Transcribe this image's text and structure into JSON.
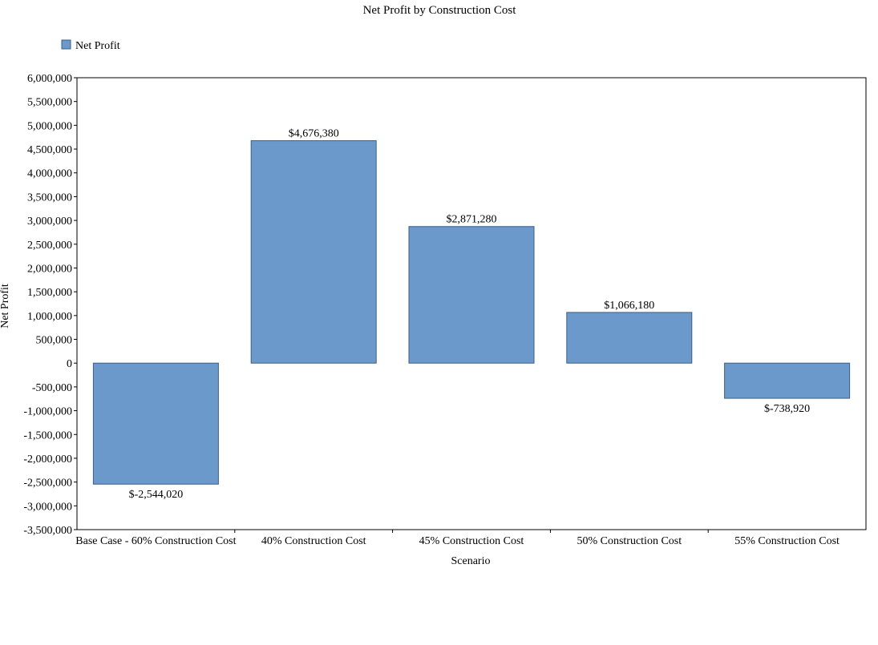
{
  "chart_data": {
    "type": "bar",
    "title": "Net Profit by Construction Cost",
    "xlabel": "Scenario",
    "ylabel": "Net Profit",
    "legend_position": "top-left",
    "grid": false,
    "ylim": [
      -3500000,
      6000000
    ],
    "ytick_step": 500000,
    "yticks": [
      "6,000,000",
      "5,500,000",
      "5,000,000",
      "4,500,000",
      "4,000,000",
      "3,500,000",
      "3,000,000",
      "2,500,000",
      "2,000,000",
      "1,500,000",
      "1,000,000",
      "500,000",
      "0",
      "-500,000",
      "-1,000,000",
      "-1,500,000",
      "-2,000,000",
      "-2,500,000",
      "-3,000,000",
      "-3,500,000"
    ],
    "categories": [
      "Base Case - 60% Construction Cost",
      "40% Construction Cost",
      "45% Construction Cost",
      "50% Construction Cost",
      "55% Construction Cost"
    ],
    "series": [
      {
        "name": "Net Profit",
        "color": "#6b99cb",
        "values": [
          -2544020,
          4676380,
          2871280,
          1066180,
          -738920
        ],
        "labels": [
          "$-2,544,020",
          "$4,676,380",
          "$2,871,280",
          "$1,066,180",
          "$-738,920"
        ]
      }
    ]
  }
}
